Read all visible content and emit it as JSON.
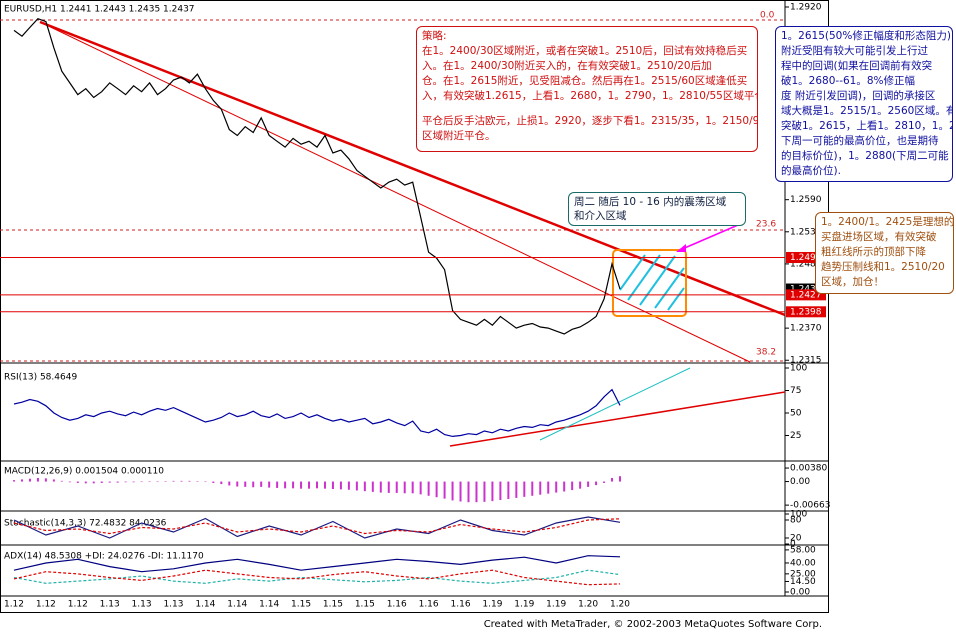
{
  "chart_data": [
    {
      "type": "line",
      "title": "EURUSD,H1  1.2441 1.2443 1.2435 1.2437",
      "color": "#000000",
      "categories": [
        "1.12",
        null,
        null,
        null,
        "1.12",
        null,
        null,
        null,
        "1.12",
        null,
        null,
        null,
        "1.13",
        null,
        null,
        null,
        "1.13",
        null,
        null,
        null,
        "1.13",
        null,
        null,
        null,
        "1.14",
        null,
        null,
        null,
        "1.14",
        null,
        null,
        null,
        "1.14",
        null,
        null,
        null,
        "1.15",
        null,
        null,
        null,
        "1.15",
        null,
        null,
        null,
        "1.15",
        null,
        null,
        null,
        "1.16",
        null,
        null,
        null,
        "1.16",
        null,
        null,
        null,
        "1.16",
        null,
        null,
        null,
        "1.19",
        null,
        null,
        null,
        "1.19",
        null,
        null,
        null,
        "1.19",
        null,
        null,
        null,
        "1.20",
        null,
        null,
        null,
        "1.20"
      ],
      "values": [
        1.288,
        1.287,
        1.2885,
        1.29,
        1.2895,
        1.285,
        1.281,
        1.279,
        1.277,
        1.278,
        1.2765,
        1.2775,
        1.279,
        1.278,
        1.277,
        1.2785,
        1.2775,
        1.279,
        1.277,
        1.278,
        1.2795,
        1.28,
        1.279,
        1.2805,
        1.278,
        1.276,
        1.2745,
        1.271,
        1.27,
        1.2715,
        1.2705,
        1.273,
        1.27,
        1.269,
        1.268,
        1.2695,
        1.2685,
        1.269,
        1.268,
        1.27,
        1.267,
        1.2675,
        1.266,
        1.264,
        1.263,
        1.262,
        1.261,
        1.262,
        1.2625,
        1.2615,
        1.262,
        1.256,
        1.25,
        1.249,
        1.247,
        1.24,
        1.2385,
        1.238,
        1.2375,
        1.2385,
        1.2375,
        1.239,
        1.238,
        1.237,
        1.2375,
        1.2378,
        1.2372,
        1.237,
        1.2365,
        1.236,
        1.2368,
        1.2372,
        1.238,
        1.239,
        1.242,
        1.248,
        1.2437
      ],
      "ylim": [
        1.2312,
        1.2932
      ],
      "yticks": [
        {
          "value": 1.292,
          "label": "1.2920"
        },
        {
          "value": 1.259,
          "label": "1.2590"
        },
        1.2535,
        {
          "value": 1.248,
          "label": "1.2480"
        },
        {
          "value": 1.237,
          "label": "1.2370"
        },
        1.2315
      ],
      "levels": [
        1.2491,
        1.2427,
        1.2398
      ],
      "price_markers": [
        {
          "value": 1.2491,
          "color": "#e00000"
        },
        {
          "value": 1.2437,
          "color": "#000000"
        },
        {
          "value": 1.2427,
          "color": "#e00000"
        },
        {
          "value": 1.2398,
          "color": "#e00000"
        }
      ],
      "fibo_labels": [
        "0.0",
        "23.6",
        "38.2"
      ]
    },
    {
      "type": "line",
      "title": "RSI(13)  58.4649",
      "ylim": [
        0,
        100
      ],
      "yticks": [
        100,
        75,
        50,
        25
      ],
      "series": [
        {
          "color": "#0000a0",
          "values": [
            60,
            62,
            65,
            63,
            58,
            50,
            45,
            42,
            44,
            48,
            46,
            50,
            52,
            49,
            47,
            51,
            48,
            52,
            55,
            53,
            56,
            52,
            48,
            44,
            40,
            42,
            45,
            50,
            46,
            48,
            52,
            47,
            45,
            49,
            44,
            46,
            50,
            45,
            48,
            44,
            41,
            43,
            40,
            42,
            44,
            38,
            40,
            43,
            39,
            36,
            41,
            30,
            28,
            32,
            26,
            24,
            25,
            27,
            26,
            30,
            28,
            32,
            30,
            33,
            35,
            34,
            37,
            36,
            40,
            42,
            45,
            48,
            52,
            58,
            68,
            76,
            58.4649
          ]
        }
      ]
    },
    {
      "type": "bar",
      "title": "MACD(12,26,9)  0.001504  0.000110",
      "ylim": [
        -0.008,
        0.0055
      ],
      "yticks": [
        {
          "value": 0.0038,
          "label": "0.00380"
        },
        {
          "value": 0,
          "label": "0.00"
        },
        {
          "value": -0.00663,
          "label": "-0.00663"
        }
      ],
      "series": [
        {
          "color": "#cc33cc",
          "values": [
            0.0004,
            0.0006,
            0.0008,
            0.001,
            0.0009,
            0.0006,
            0.0002,
            -0.0002,
            -0.0004,
            -0.0005,
            -0.0005,
            -0.0004,
            -0.0003,
            -0.0003,
            -0.0002,
            -0.0002,
            -0.0001,
            -0.0001,
            0.0,
            0.0001,
            0.0002,
            0.0002,
            0.0002,
            0.0001,
            -0.0001,
            -0.0004,
            -0.0007,
            -0.0011,
            -0.0014,
            -0.0015,
            -0.0016,
            -0.0015,
            -0.0017,
            -0.0018,
            -0.0019,
            -0.0019,
            -0.002,
            -0.002,
            -0.0019,
            -0.002,
            -0.0021,
            -0.0022,
            -0.0023,
            -0.0025,
            -0.0027,
            -0.0029,
            -0.0031,
            -0.0032,
            -0.0032,
            -0.0033,
            -0.0033,
            -0.0036,
            -0.004,
            -0.0044,
            -0.0048,
            -0.0053,
            -0.0056,
            -0.0058,
            -0.0058,
            -0.0057,
            -0.0055,
            -0.0052,
            -0.0049,
            -0.0046,
            -0.0043,
            -0.004,
            -0.0037,
            -0.0034,
            -0.0031,
            -0.0028,
            -0.0024,
            -0.002,
            -0.0015,
            -0.001,
            -0.0004,
            0.001,
            0.001504
          ]
        }
      ]
    },
    {
      "type": "line",
      "title": "Stochastic(14,3,3)  72.4832  84.0236",
      "ylim": [
        0,
        100
      ],
      "yticks": [
        100,
        80,
        20,
        0
      ],
      "series": [
        {
          "color": "#1a1a80",
          "dashed": false,
          "values": [
            80,
            30,
            60,
            20,
            70,
            40,
            85,
            25,
            60,
            30,
            75,
            20,
            50,
            35,
            80,
            45,
            30,
            70,
            90,
            72.4832
          ]
        },
        {
          "color": "#e00000",
          "dashed": true,
          "values": [
            70,
            45,
            50,
            35,
            55,
            50,
            70,
            40,
            50,
            40,
            60,
            35,
            45,
            40,
            65,
            50,
            40,
            55,
            80,
            84.0236
          ]
        }
      ]
    },
    {
      "type": "line",
      "title": "ADX(14)  48.5308  +DI: 24.0276  -DI: 11.1170",
      "ylim": [
        0,
        62
      ],
      "yticks": [
        {
          "value": 58,
          "label": "58.00"
        },
        {
          "value": 40,
          "label": "40.00"
        },
        {
          "value": 25,
          "label": "25.00"
        },
        {
          "value": 14.5,
          "label": "14.50"
        },
        {
          "value": 0,
          "label": "0.00"
        }
      ],
      "series": [
        {
          "color": "#000080",
          "dashed": false,
          "values": [
            30,
            40,
            45,
            35,
            28,
            32,
            40,
            45,
            38,
            30,
            35,
            40,
            45,
            42,
            38,
            44,
            48,
            40,
            50,
            48.5308
          ]
        },
        {
          "color": "#20b2aa",
          "dashed": true,
          "values": [
            20,
            12,
            15,
            18,
            22,
            15,
            12,
            18,
            15,
            20,
            17,
            14,
            16,
            20,
            15,
            12,
            16,
            20,
            30,
            24.0276
          ]
        },
        {
          "color": "#e00000",
          "dashed": true,
          "values": [
            18,
            28,
            25,
            20,
            16,
            22,
            30,
            25,
            20,
            18,
            24,
            28,
            22,
            18,
            25,
            30,
            20,
            15,
            10,
            11.117
          ]
        }
      ]
    }
  ],
  "annotations": {
    "strategy": {
      "heading": "策略:",
      "buy": [
        "在1。2400/30区域附近，或者在突破1。2510后，回试有效持稳后买",
        "入。在1。2400/30附近买入的，在有效突破1。2510/20后加",
        "仓。在1。2615附近，见受阻减仓。然后再在1。2515/60区域逢低买",
        "入，有效突破1.2615，上看1。2680，1。2790，1。2810/55区域平仓。"
      ],
      "sell": [
        "平仓后反手沽欧元，止损1。2920，逐步下看1。2315/35，1。2150/90",
        "区域附近平仓。"
      ]
    },
    "outlook": [
      "1。2615(50%修正幅度和形态阻力)",
      "附近受阻有较大可能引发上行过",
      "程中的回调(如果在回调前有效突",
      "破1。2680--61。8%修正幅",
      "度 附近引发回调)，回调的承接区",
      "域大概是1。2515/1。2560区域。有效",
      "突破1。2615，上看1。2810，1。2855(",
      "下周一可能的最高价位，也是期待",
      "的目标价位)，1。2880(下周二可能",
      "的最高价位)."
    ],
    "zone": [
      "周二 随后 10 - 16 内的震荡区域",
      "和介入区域"
    ],
    "entry": [
      "1。2400/1。2425是理想的",
      "买盘进场区域，有效突破",
      "粗红线所示的顶部下降",
      "趋势压制线和1。2510/20",
      "区域，加仓！"
    ]
  },
  "footer": "Created with MetaTrader, © 2002-2003 MetaQuotes Software Corp."
}
